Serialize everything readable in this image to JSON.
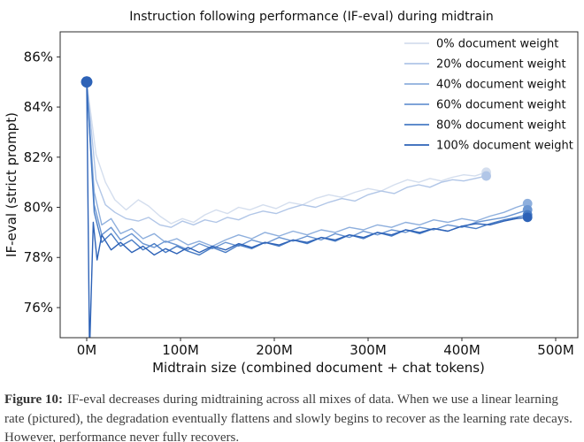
{
  "figure_caption": {
    "label": "Figure 10:",
    "text": "IF-eval decreases during midtraining across all mixes of data. When we use a linear learning rate (pictured), the degradation eventually flattens and slowly begins to recover as the learning rate decays. However, performance never fully recovers."
  },
  "chart_data": {
    "type": "line",
    "title": "Instruction following performance (IF-eval) during midtrain",
    "xlabel": "Midtrain size (combined document + chat tokens)",
    "ylabel": "IF-eval (strict prompt)",
    "xlim": [
      -28.3,
      523.6
    ],
    "ylim": [
      74.8,
      87.0
    ],
    "grid": false,
    "legend_position": "upper right",
    "x_ticks": [
      [
        0,
        "0M"
      ],
      [
        100,
        "100M"
      ],
      [
        200,
        "200M"
      ],
      [
        300,
        "300M"
      ],
      [
        400,
        "400M"
      ],
      [
        500,
        "500M"
      ]
    ],
    "y_ticks": [
      [
        76,
        "76%"
      ],
      [
        78,
        "78%"
      ],
      [
        80,
        "80%"
      ],
      [
        82,
        "82%"
      ],
      [
        84,
        "84%"
      ],
      [
        86,
        "86%"
      ]
    ],
    "axis_color": "#2b2b2b",
    "series": [
      {
        "name": "0% document weight",
        "color": "#d4deee",
        "points": [
          [
            0,
            85
          ],
          [
            10,
            82.1
          ],
          [
            20,
            81.0
          ],
          [
            30,
            80.3
          ],
          [
            42,
            79.9
          ],
          [
            55,
            80.3
          ],
          [
            66,
            80.05
          ],
          [
            78,
            79.65
          ],
          [
            90,
            79.35
          ],
          [
            102,
            79.55
          ],
          [
            114,
            79.4
          ],
          [
            126,
            79.7
          ],
          [
            138,
            79.9
          ],
          [
            150,
            79.75
          ],
          [
            162,
            80.0
          ],
          [
            174,
            79.9
          ],
          [
            188,
            80.1
          ],
          [
            202,
            79.95
          ],
          [
            216,
            80.2
          ],
          [
            230,
            80.1
          ],
          [
            244,
            80.35
          ],
          [
            258,
            80.5
          ],
          [
            272,
            80.4
          ],
          [
            286,
            80.6
          ],
          [
            300,
            80.75
          ],
          [
            314,
            80.65
          ],
          [
            328,
            80.9
          ],
          [
            342,
            81.1
          ],
          [
            354,
            81.0
          ],
          [
            366,
            81.15
          ],
          [
            378,
            81.05
          ],
          [
            390,
            81.2
          ],
          [
            402,
            81.3
          ],
          [
            414,
            81.25
          ],
          [
            426,
            81.4
          ]
        ]
      },
      {
        "name": "20% document weight",
        "color": "#b1c6e7",
        "points": [
          [
            0,
            85
          ],
          [
            10,
            81.1
          ],
          [
            20,
            80.1
          ],
          [
            30,
            79.8
          ],
          [
            42,
            79.55
          ],
          [
            55,
            79.45
          ],
          [
            66,
            79.6
          ],
          [
            78,
            79.3
          ],
          [
            90,
            79.2
          ],
          [
            102,
            79.45
          ],
          [
            114,
            79.3
          ],
          [
            126,
            79.5
          ],
          [
            138,
            79.4
          ],
          [
            150,
            79.6
          ],
          [
            162,
            79.5
          ],
          [
            174,
            79.7
          ],
          [
            188,
            79.85
          ],
          [
            202,
            79.75
          ],
          [
            216,
            79.95
          ],
          [
            230,
            80.1
          ],
          [
            244,
            80.0
          ],
          [
            258,
            80.2
          ],
          [
            272,
            80.35
          ],
          [
            286,
            80.25
          ],
          [
            300,
            80.5
          ],
          [
            314,
            80.65
          ],
          [
            328,
            80.55
          ],
          [
            342,
            80.8
          ],
          [
            354,
            80.9
          ],
          [
            366,
            80.8
          ],
          [
            378,
            81.0
          ],
          [
            390,
            81.1
          ],
          [
            402,
            81.05
          ],
          [
            414,
            81.15
          ],
          [
            426,
            81.25
          ]
        ]
      },
      {
        "name": "40% document weight",
        "color": "#8eafdd",
        "points": [
          [
            0,
            85
          ],
          [
            8,
            80.6
          ],
          [
            16,
            79.3
          ],
          [
            26,
            79.55
          ],
          [
            36,
            78.95
          ],
          [
            48,
            79.15
          ],
          [
            60,
            78.75
          ],
          [
            72,
            78.95
          ],
          [
            84,
            78.6
          ],
          [
            96,
            78.75
          ],
          [
            108,
            78.5
          ],
          [
            120,
            78.65
          ],
          [
            134,
            78.45
          ],
          [
            148,
            78.7
          ],
          [
            162,
            78.9
          ],
          [
            176,
            78.75
          ],
          [
            190,
            79.0
          ],
          [
            205,
            78.85
          ],
          [
            220,
            79.05
          ],
          [
            235,
            78.9
          ],
          [
            250,
            79.1
          ],
          [
            265,
            79.0
          ],
          [
            280,
            79.2
          ],
          [
            295,
            79.1
          ],
          [
            310,
            79.3
          ],
          [
            325,
            79.2
          ],
          [
            340,
            79.4
          ],
          [
            355,
            79.3
          ],
          [
            370,
            79.5
          ],
          [
            385,
            79.4
          ],
          [
            400,
            79.55
          ],
          [
            415,
            79.45
          ],
          [
            430,
            79.65
          ],
          [
            445,
            79.8
          ],
          [
            458,
            80.0
          ],
          [
            470,
            80.15
          ]
        ]
      },
      {
        "name": "60% document weight",
        "color": "#6b96d2",
        "points": [
          [
            0,
            85
          ],
          [
            8,
            80.1
          ],
          [
            16,
            78.9
          ],
          [
            26,
            79.2
          ],
          [
            36,
            78.7
          ],
          [
            48,
            78.95
          ],
          [
            60,
            78.55
          ],
          [
            72,
            78.4
          ],
          [
            84,
            78.65
          ],
          [
            96,
            78.5
          ],
          [
            108,
            78.3
          ],
          [
            120,
            78.55
          ],
          [
            134,
            78.35
          ],
          [
            148,
            78.6
          ],
          [
            162,
            78.45
          ],
          [
            176,
            78.7
          ],
          [
            190,
            78.55
          ],
          [
            205,
            78.8
          ],
          [
            220,
            78.65
          ],
          [
            235,
            78.85
          ],
          [
            250,
            78.7
          ],
          [
            265,
            78.95
          ],
          [
            280,
            78.8
          ],
          [
            295,
            79.05
          ],
          [
            310,
            78.9
          ],
          [
            325,
            79.1
          ],
          [
            340,
            79.0
          ],
          [
            355,
            79.2
          ],
          [
            370,
            79.1
          ],
          [
            385,
            79.3
          ],
          [
            400,
            79.2
          ],
          [
            415,
            79.4
          ],
          [
            430,
            79.5
          ],
          [
            445,
            79.6
          ],
          [
            458,
            79.75
          ],
          [
            470,
            79.9
          ]
        ]
      },
      {
        "name": "80% document weight",
        "color": "#487cc5",
        "points": [
          [
            0,
            85
          ],
          [
            8,
            79.8
          ],
          [
            16,
            78.6
          ],
          [
            26,
            78.95
          ],
          [
            36,
            78.45
          ],
          [
            48,
            78.7
          ],
          [
            60,
            78.3
          ],
          [
            72,
            78.55
          ],
          [
            84,
            78.2
          ],
          [
            96,
            78.45
          ],
          [
            108,
            78.25
          ],
          [
            120,
            78.1
          ],
          [
            134,
            78.4
          ],
          [
            148,
            78.2
          ],
          [
            162,
            78.5
          ],
          [
            176,
            78.35
          ],
          [
            190,
            78.6
          ],
          [
            205,
            78.45
          ],
          [
            220,
            78.7
          ],
          [
            235,
            78.55
          ],
          [
            250,
            78.8
          ],
          [
            265,
            78.65
          ],
          [
            280,
            78.9
          ],
          [
            295,
            78.75
          ],
          [
            310,
            79.0
          ],
          [
            325,
            78.85
          ],
          [
            340,
            79.1
          ],
          [
            355,
            78.95
          ],
          [
            370,
            79.15
          ],
          [
            385,
            79.05
          ],
          [
            400,
            79.25
          ],
          [
            415,
            79.15
          ],
          [
            430,
            79.35
          ],
          [
            445,
            79.5
          ],
          [
            458,
            79.6
          ],
          [
            470,
            79.7
          ]
        ]
      },
      {
        "name": "100% document weight",
        "color": "#2d62b7",
        "points": [
          [
            0,
            85
          ],
          [
            3,
            74.2
          ],
          [
            7,
            79.4
          ],
          [
            11,
            77.9
          ],
          [
            16,
            78.9
          ],
          [
            26,
            78.3
          ],
          [
            36,
            78.6
          ],
          [
            48,
            78.2
          ],
          [
            60,
            78.45
          ],
          [
            72,
            78.1
          ],
          [
            84,
            78.35
          ],
          [
            96,
            78.15
          ],
          [
            108,
            78.4
          ],
          [
            120,
            78.2
          ],
          [
            134,
            78.45
          ],
          [
            148,
            78.3
          ],
          [
            162,
            78.55
          ],
          [
            176,
            78.4
          ],
          [
            190,
            78.6
          ],
          [
            205,
            78.5
          ],
          [
            220,
            78.7
          ],
          [
            235,
            78.6
          ],
          [
            250,
            78.8
          ],
          [
            265,
            78.7
          ],
          [
            280,
            78.9
          ],
          [
            295,
            78.8
          ],
          [
            310,
            79.0
          ],
          [
            325,
            78.9
          ],
          [
            340,
            79.1
          ],
          [
            355,
            79.0
          ],
          [
            370,
            79.15
          ],
          [
            385,
            79.05
          ],
          [
            400,
            79.25
          ],
          [
            415,
            79.35
          ],
          [
            430,
            79.3
          ],
          [
            445,
            79.45
          ],
          [
            458,
            79.55
          ],
          [
            470,
            79.6
          ]
        ]
      }
    ]
  }
}
